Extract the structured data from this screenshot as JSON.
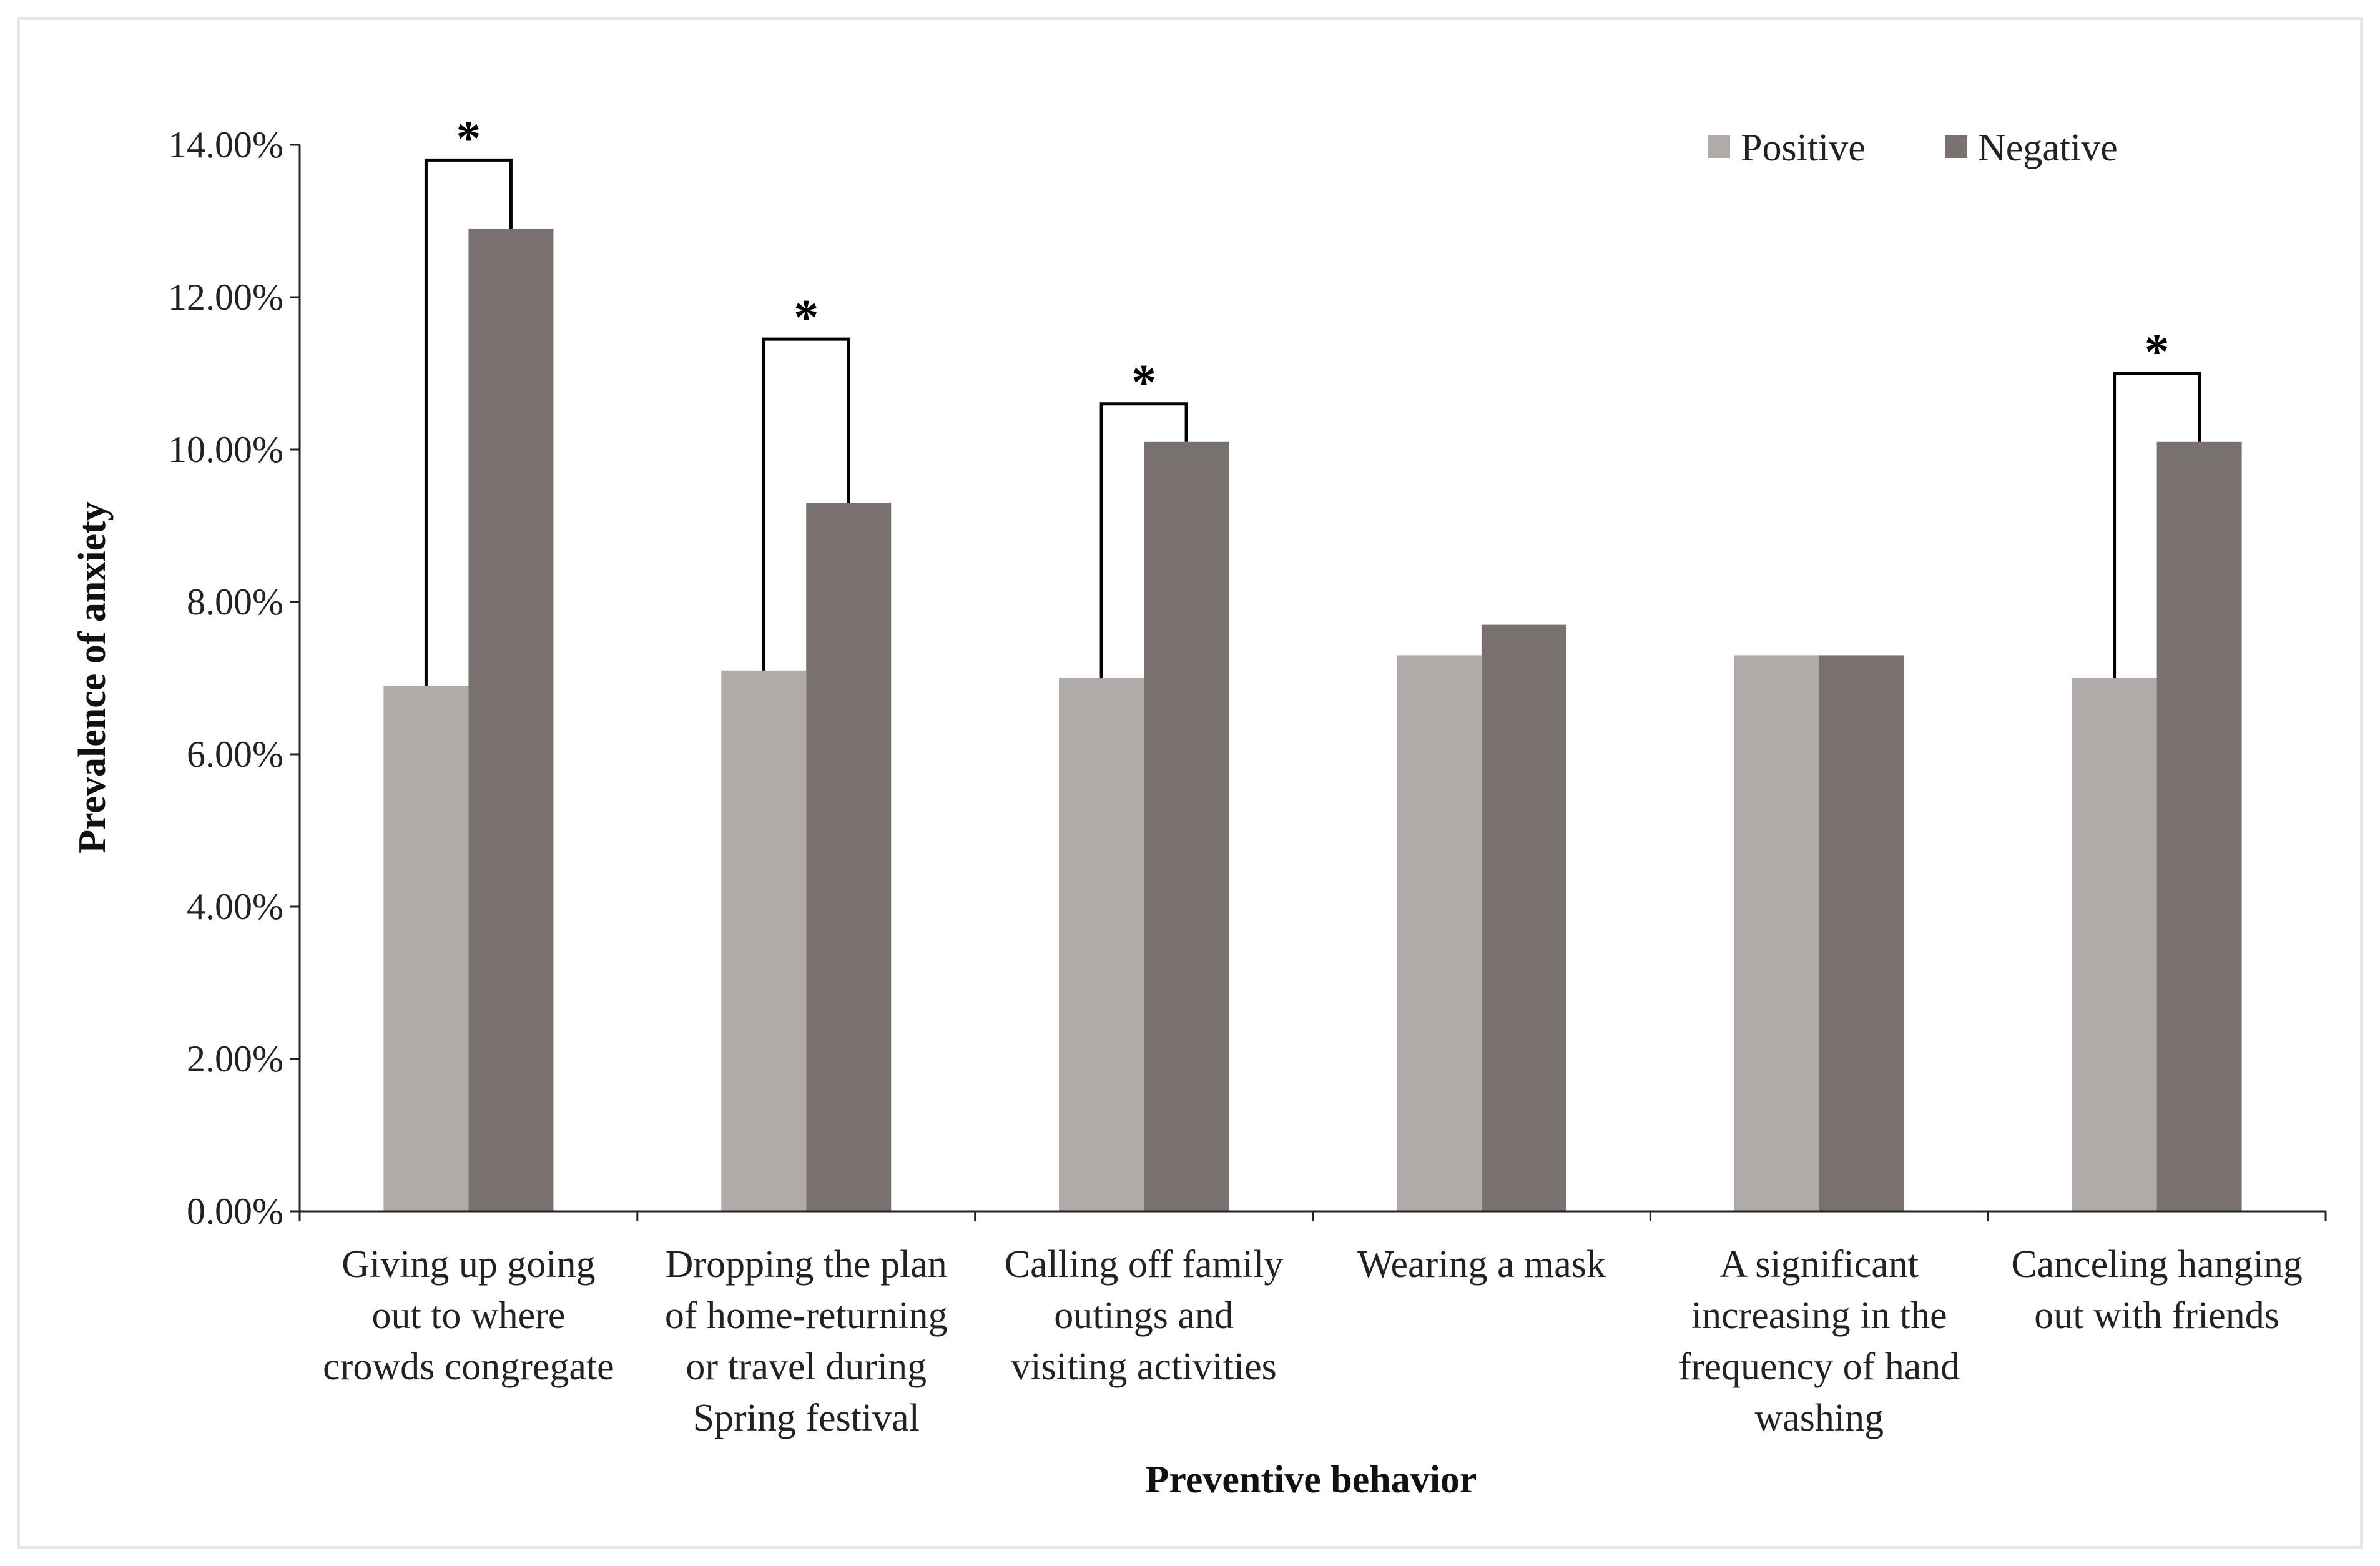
{
  "chart_data": {
    "type": "bar",
    "title": "",
    "xlabel": "Preventive behavior",
    "ylabel": "Prevalence of anxiety",
    "ylim": [
      0,
      14
    ],
    "yticks": [
      0,
      2,
      4,
      6,
      8,
      10,
      12,
      14
    ],
    "ytick_labels": [
      "0.00%",
      "2.00%",
      "4.00%",
      "6.00%",
      "8.00%",
      "10.00%",
      "12.00%",
      "14.00%"
    ],
    "grid": false,
    "legend_position": "top-right",
    "categories": [
      [
        "Giving up going",
        "out to where",
        "crowds congregate"
      ],
      [
        "Dropping the plan",
        "of home-returning",
        "or travel during",
        "Spring festival"
      ],
      [
        "Calling off family",
        "outings and",
        "visiting activities"
      ],
      [
        "Wearing a mask"
      ],
      [
        "A significant",
        "increasing in the",
        "frequency of hand",
        "washing"
      ],
      [
        "Canceling hanging",
        "out with friends"
      ]
    ],
    "series": [
      {
        "name": "Positive",
        "color": "#b0aba8",
        "values": [
          6.9,
          7.1,
          7.0,
          7.3,
          7.3,
          7.0
        ]
      },
      {
        "name": "Negative",
        "color": "#787170",
        "values": [
          12.9,
          9.3,
          10.1,
          7.7,
          7.3,
          10.1
        ]
      }
    ],
    "significance": {
      "marker": "*",
      "categories": [
        0,
        1,
        2,
        5
      ],
      "bracket_values": [
        13.8,
        11.45,
        10.6,
        11.0
      ]
    }
  }
}
